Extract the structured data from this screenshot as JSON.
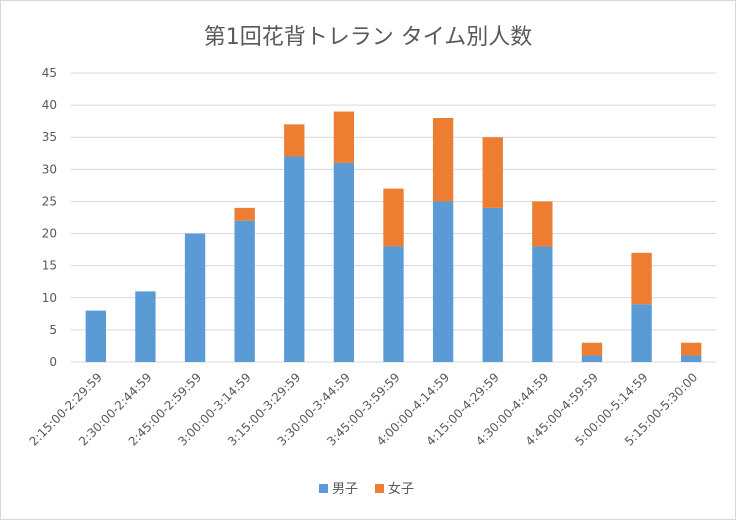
{
  "chart_data": {
    "type": "bar",
    "stacked": true,
    "title": "第1回花背トレラン タイム別人数",
    "xlabel": "",
    "ylabel": "",
    "ylim": [
      0,
      45
    ],
    "yticks": [
      0,
      5,
      10,
      15,
      20,
      25,
      30,
      35,
      40,
      45
    ],
    "grid": true,
    "legend_position": "bottom",
    "categories": [
      "2:15:00-2:29:59",
      "2:30:00-2:44:59",
      "2:45:00-2:59:59",
      "3:00:00-3:14:59",
      "3:15:00-3:29:59",
      "3:30:00-3:44:59",
      "3:45:00-3:59:59",
      "4:00:00-4:14:59",
      "4:15:00-4:29:59",
      "4:30:00-4:44:59",
      "4:45:00-4:59:59",
      "5:00:00-5:14:59",
      "5:15:00-5:30:00"
    ],
    "series": [
      {
        "name": "男子",
        "color": "#5b9bd5",
        "values": [
          8,
          11,
          20,
          22,
          32,
          31,
          18,
          25,
          24,
          18,
          1,
          9,
          1
        ]
      },
      {
        "name": "女子",
        "color": "#ed7d31",
        "values": [
          0,
          0,
          0,
          2,
          5,
          8,
          9,
          13,
          11,
          7,
          2,
          8,
          2
        ]
      }
    ]
  }
}
